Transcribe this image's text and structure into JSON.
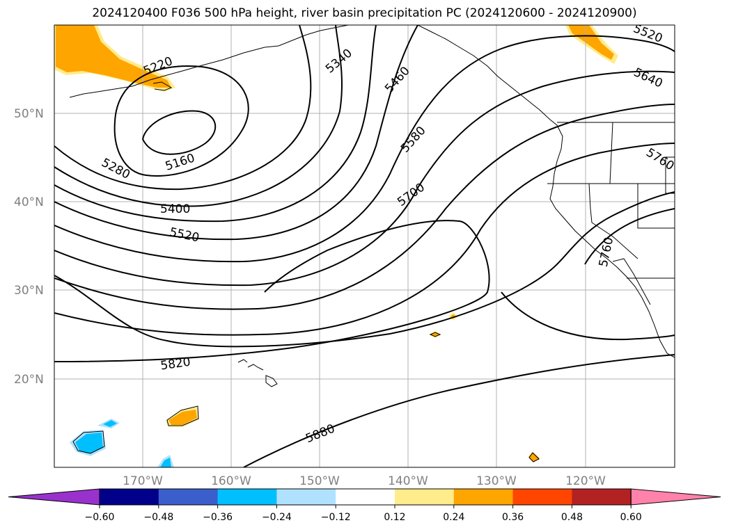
{
  "title": "2024120400 F036 500 hPa height, river basin precipitation PC (2024120600 - 2024120900)",
  "lat_labels": [
    "50°N",
    "40°N",
    "30°N",
    "20°N"
  ],
  "lon_labels": [
    "170°W",
    "160°W",
    "150°W",
    "140°W",
    "130°W",
    "120°W"
  ],
  "contour_labels": [
    "5220",
    "5340",
    "5460",
    "5520",
    "5640",
    "5160",
    "5280",
    "5400",
    "5520",
    "5580",
    "5700",
    "5760",
    "5760",
    "5820",
    "5880"
  ],
  "colorbar": {
    "ticks": [
      "−0.60",
      "−0.48",
      "−0.36",
      "−0.24",
      "−0.12",
      "0.12",
      "0.24",
      "0.36",
      "0.48",
      "0.60"
    ],
    "colors": [
      "#9932CC",
      "#00008B",
      "#3A5FCD",
      "#00BFFF",
      "#B0E2FF",
      "#FFFFFF",
      "#FFEC8B",
      "#FFA500",
      "#FF4500",
      "#B22222",
      "#FF82AB"
    ]
  }
}
